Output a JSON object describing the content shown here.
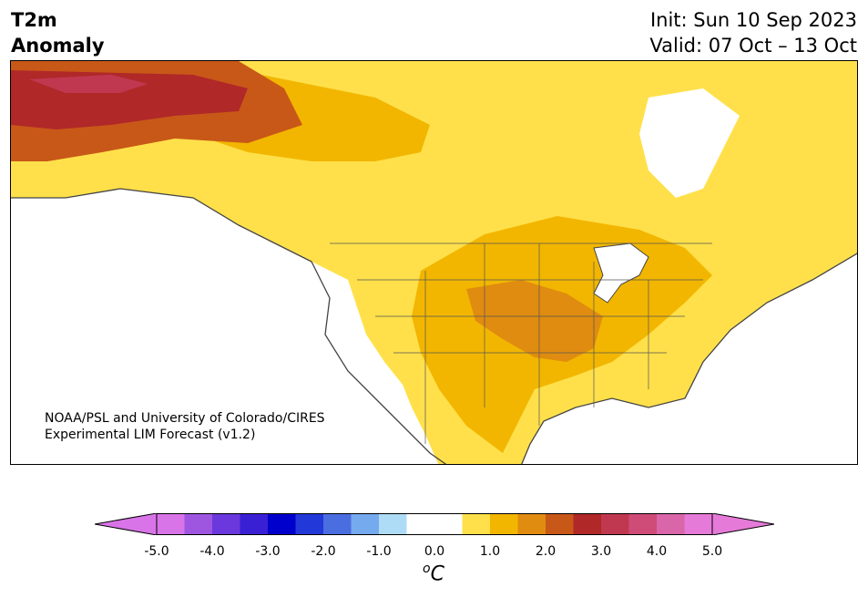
{
  "header": {
    "title_line1": "T2m",
    "title_line2": "Anomaly",
    "init": "Init: Sun 10 Sep 2023",
    "valid": "Valid: 07 Oct – 13 Oct"
  },
  "credit": {
    "line1": "NOAA/PSL and University of Colorado/CIRES",
    "line2": "Experimental LIM Forecast (v1.2)"
  },
  "colorbar": {
    "ticks": [
      "-5.0",
      "-4.0",
      "-3.0",
      "-2.0",
      "-1.0",
      "0.0",
      "1.0",
      "2.0",
      "3.0",
      "4.0",
      "5.0"
    ],
    "unit_base": "o",
    "unit_letter": "C",
    "colors": [
      "#d974e8",
      "#9e56e0",
      "#6a38dc",
      "#3a20d4",
      "#0000cc",
      "#2238d8",
      "#4a6ee0",
      "#76aaee",
      "#aedcf6",
      "#ffffff",
      "#ffffff",
      "#ffe04a",
      "#f2b600",
      "#e08c10",
      "#c85818",
      "#b02828",
      "#c03850",
      "#cf4c78",
      "#d866a8",
      "#e67ad8"
    ],
    "under_color": "#d974e8",
    "over_color": "#e67ad8"
  },
  "map": {
    "region": "North America",
    "legend": "Week 3-4 2m temperature anomaly, shaded by colorbar"
  }
}
